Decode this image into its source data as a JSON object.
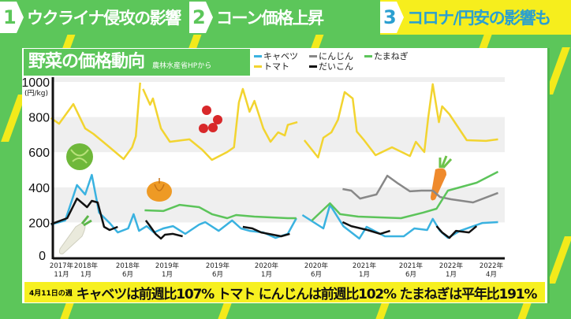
{
  "banner": {
    "items": [
      {
        "number": "1",
        "label": "ウクライナ侵攻の影響"
      },
      {
        "number": "2",
        "label": "コーン価格上昇"
      },
      {
        "number": "3",
        "label": "コロナ/円安の影響も"
      }
    ],
    "colors": {
      "green": "#5cc65a",
      "yellow": "#f6ee1d",
      "blue_text": "#2a9fd0"
    }
  },
  "panel": {
    "title": "野菜の価格動向",
    "source": "農林水産省HPから"
  },
  "footer": {
    "week": "4月11日の週",
    "text": "キャベツは前週比107% トマト にんじんは前週比102% たまねぎは平年比191%"
  },
  "chart_data": {
    "type": "line",
    "ylabel": "(円/kg)",
    "ylim": [
      0,
      1000
    ],
    "yticks": [
      0,
      200,
      400,
      600,
      800,
      1000
    ],
    "xticks": [
      {
        "date": "2017-11",
        "line1": "2017年",
        "line2": "11月"
      },
      {
        "date": "2018-01",
        "line1": "2018年",
        "line2": "1月"
      },
      {
        "date": "2018-06",
        "line1": "2018年",
        "line2": "6月"
      },
      {
        "date": "2019-01",
        "line1": "2019年",
        "line2": "1月"
      },
      {
        "date": "2019-06",
        "line1": "2019年",
        "line2": "6月"
      },
      {
        "date": "2020-01",
        "line1": "2020年",
        "line2": "1月"
      },
      {
        "date": "2020-06",
        "line1": "2020年",
        "line2": "6月"
      },
      {
        "date": "2021-01",
        "line1": "2021年",
        "line2": "1月"
      },
      {
        "date": "2021-06",
        "line1": "2021年",
        "line2": "6月"
      },
      {
        "date": "2022-01",
        "line1": "2022年",
        "line2": "1月"
      },
      {
        "date": "2022-04",
        "line1": "2022年",
        "line2": "4月"
      }
    ],
    "grid_bands": [
      [
        200,
        400
      ],
      [
        600,
        800
      ]
    ],
    "legend_placement": "top",
    "series": [
      {
        "name": "キャベツ",
        "color": "#3ab2e0",
        "segments": [
          [
            [
              "2017-10-05",
              188
            ],
            [
              "2017-11-10",
              211
            ],
            [
              "2017-12-09",
              413
            ],
            [
              "2017-12-29",
              359
            ],
            [
              "2018-01-22",
              471
            ],
            [
              "2018-02-18",
              256
            ],
            [
              "2018-03-26",
              197
            ],
            [
              "2018-04-25",
              143
            ],
            [
              "2018-06-03",
              166
            ],
            [
              "2018-07-02",
              247
            ],
            [
              "2018-08-01",
              152
            ],
            [
              "2018-09-12",
              179
            ],
            [
              "2018-10-20",
              143
            ],
            [
              "2018-12-10",
              166
            ],
            [
              "2019-01-18",
              179
            ],
            [
              "2019-02-25",
              135
            ],
            [
              "2019-04-06",
              188
            ],
            [
              "2019-04-24",
              202
            ],
            [
              "2019-06-05",
              152
            ],
            [
              "2019-08-03",
              211
            ],
            [
              "2019-09-11",
              166
            ],
            [
              "2019-10-18",
              152
            ],
            [
              "2019-12-17",
              143
            ],
            [
              "2020-01-28",
              112
            ],
            [
              "2020-03-05",
              135
            ],
            [
              "2020-04-01",
              224
            ]
          ],
          [
            [
              "2020-04-19",
              242
            ],
            [
              "2020-07-02",
              166
            ],
            [
              "2020-08-01",
              300
            ],
            [
              "2020-09-29",
              179
            ],
            [
              "2020-12-09",
              108
            ],
            [
              "2021-01-08",
              175
            ],
            [
              "2021-03-07",
              121
            ],
            [
              "2021-05-08",
              121
            ],
            [
              "2021-06-19",
              166
            ],
            [
              "2021-08-26",
              157
            ],
            [
              "2021-09-25",
              220
            ],
            [
              "2021-11-03",
              152
            ],
            [
              "2021-12-14",
              112
            ],
            [
              "2022-01-21",
              152
            ],
            [
              "2022-03-11",
              197
            ],
            [
              "2022-04-16",
              202
            ]
          ]
        ]
      },
      {
        "name": "にんじん",
        "color": "#888888",
        "segments": [
          [
            [
              "2020-09-26",
              390
            ],
            [
              "2020-11-04",
              381
            ],
            [
              "2020-12-12",
              336
            ],
            [
              "2021-02-10",
              359
            ],
            [
              "2021-03-15",
              466
            ],
            [
              "2021-04-20",
              421
            ],
            [
              "2021-05-28",
              377
            ],
            [
              "2021-07-26",
              381
            ],
            [
              "2021-09-25",
              381
            ],
            [
              "2021-11-03",
              345
            ],
            [
              "2022-01-01",
              332
            ],
            [
              "2022-02-20",
              314
            ],
            [
              "2022-04-16",
              368
            ]
          ]
        ]
      },
      {
        "name": "たまねぎ",
        "color": "#5cc45a",
        "segments": [
          [
            [
              "2018-09-01",
              269
            ],
            [
              "2018-12-10",
              265
            ],
            [
              "2019-02-08",
              300
            ],
            [
              "2019-04-06",
              287
            ],
            [
              "2019-05-14",
              247
            ],
            [
              "2019-07-12",
              224
            ],
            [
              "2019-08-20",
              242
            ],
            [
              "2019-11-09",
              233
            ],
            [
              "2020-03-05",
              224
            ],
            [
              "2020-04-01",
              224
            ]
          ],
          [
            [
              "2020-05-18",
              211
            ],
            [
              "2020-08-01",
              309
            ],
            [
              "2020-09-15",
              247
            ],
            [
              "2020-12-04",
              233
            ],
            [
              "2021-04-29",
              224
            ],
            [
              "2021-08-05",
              256
            ],
            [
              "2021-10-15",
              278
            ],
            [
              "2021-12-14",
              381
            ],
            [
              "2022-02-28",
              426
            ],
            [
              "2022-04-16",
              489
            ]
          ]
        ]
      },
      {
        "name": "トマト",
        "color": "#f2d430",
        "segments": [
          [
            [
              "2017-10-05",
              794
            ],
            [
              "2017-10-25",
              762
            ],
            [
              "2017-11-30",
              874
            ],
            [
              "2017-12-29",
              735
            ],
            [
              "2018-01-28",
              704
            ],
            [
              "2018-03-26",
              628
            ],
            [
              "2018-05-16",
              561
            ],
            [
              "2018-06-24",
              628
            ],
            [
              "2018-07-14",
              690
            ],
            [
              "2018-08-07",
              996
            ]
          ],
          [
            [
              "2018-08-22",
              960
            ],
            [
              "2018-09-30",
              870
            ],
            [
              "2018-10-15",
              906
            ],
            [
              "2018-11-28",
              735
            ],
            [
              "2019-01-09",
              659
            ],
            [
              "2019-03-07",
              673
            ],
            [
              "2019-04-15",
              614
            ],
            [
              "2019-05-14",
              556
            ],
            [
              "2019-07-12",
              601
            ],
            [
              "2019-08-11",
              628
            ],
            [
              "2019-09-02",
              883
            ],
            [
              "2019-09-19",
              960
            ],
            [
              "2019-10-18",
              830
            ],
            [
              "2019-11-09",
              892
            ],
            [
              "2019-12-17",
              735
            ],
            [
              "2020-01-13",
              659
            ],
            [
              "2020-02-06",
              713
            ],
            [
              "2020-02-26",
              695
            ],
            [
              "2020-03-05",
              755
            ],
            [
              "2020-04-04",
              771
            ]
          ],
          [
            [
              "2020-04-25",
              668
            ],
            [
              "2020-06-09",
              570
            ],
            [
              "2020-07-02",
              682
            ],
            [
              "2020-08-07",
              713
            ],
            [
              "2020-09-06",
              785
            ],
            [
              "2020-10-05",
              942
            ],
            [
              "2020-11-10",
              906
            ],
            [
              "2020-11-28",
              717
            ],
            [
              "2020-12-27",
              673
            ],
            [
              "2021-02-07",
              583
            ],
            [
              "2021-03-30",
              628
            ],
            [
              "2021-05-28",
              578
            ],
            [
              "2021-06-27",
              659
            ],
            [
              "2021-08-11",
              601
            ],
            [
              "2021-09-01",
              794
            ],
            [
              "2021-09-25",
              987
            ],
            [
              "2021-10-27",
              771
            ],
            [
              "2021-11-14",
              861
            ],
            [
              "2021-12-22",
              816
            ],
            [
              "2022-02-06",
              668
            ],
            [
              "2022-03-19",
              664
            ],
            [
              "2022-04-16",
              673
            ]
          ]
        ]
      },
      {
        "name": "だいこん",
        "color": "#111111",
        "segments": [
          [
            [
              "2017-10-05",
              190
            ],
            [
              "2017-11-15",
              224
            ],
            [
              "2017-12-09",
              336
            ],
            [
              "2018-01-05",
              287
            ],
            [
              "2018-01-22",
              323
            ],
            [
              "2018-02-13",
              314
            ],
            [
              "2018-03-06",
              175
            ],
            [
              "2018-03-26",
              157
            ],
            [
              "2018-04-25",
              175
            ]
          ],
          [
            [
              "2018-09-07",
              211
            ],
            [
              "2018-09-30",
              179
            ],
            [
              "2018-10-29",
              135
            ],
            [
              "2018-11-28",
              108
            ],
            [
              "2018-12-19",
              130
            ],
            [
              "2019-01-18",
              135
            ],
            [
              "2019-02-17",
              121
            ]
          ],
          [
            [
              "2019-09-19",
              175
            ],
            [
              "2019-10-30",
              166
            ],
            [
              "2019-12-08",
              143
            ],
            [
              "2020-02-15",
              121
            ],
            [
              "2020-03-11",
              135
            ]
          ],
          [
            [
              "2020-09-26",
              202
            ],
            [
              "2020-11-04",
              179
            ],
            [
              "2021-01-11",
              157
            ],
            [
              "2021-02-22",
              135
            ],
            [
              "2021-03-24",
              152
            ]
          ],
          [
            [
              "2021-10-15",
              179
            ],
            [
              "2021-11-14",
              143
            ],
            [
              "2021-12-22",
              112
            ],
            [
              "2022-01-12",
              152
            ],
            [
              "2022-02-11",
              143
            ],
            [
              "2022-02-28",
              179
            ]
          ]
        ]
      }
    ]
  }
}
